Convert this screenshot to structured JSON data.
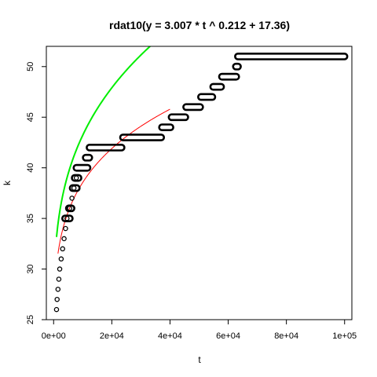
{
  "chart_data": {
    "type": "scatter",
    "title": "rdat10(y = 3.007 * t ^ 0.212 + 17.36)",
    "xlabel": "t",
    "ylabel": "k",
    "xlim": [
      -2500,
      102500
    ],
    "ylim": [
      25,
      52
    ],
    "x_ticks": [
      0,
      20000,
      40000,
      60000,
      80000,
      100000
    ],
    "x_tick_labels": [
      "0e+00",
      "2e+04",
      "4e+04",
      "6e+04",
      "8e+04",
      "1e+05"
    ],
    "y_ticks": [
      25,
      30,
      35,
      40,
      45,
      50
    ],
    "y_tick_labels": [
      "25",
      "30",
      "35",
      "40",
      "45",
      "50"
    ],
    "grid": false,
    "points": [
      {
        "x": 1000,
        "y": 26
      },
      {
        "x": 1200,
        "y": 27
      },
      {
        "x": 1500,
        "y": 28
      },
      {
        "x": 1800,
        "y": 29
      },
      {
        "x": 2100,
        "y": 30
      },
      {
        "x": 2600,
        "y": 31
      },
      {
        "x": 3100,
        "y": 32
      },
      {
        "x": 3600,
        "y": 33
      },
      {
        "x": 4100,
        "y": 34
      },
      {
        "x": 4600,
        "y": 35
      },
      {
        "x": 5500,
        "y": 36
      },
      {
        "x": 6300,
        "y": 37
      },
      {
        "x": 7000,
        "y": 38
      },
      {
        "x": 7800,
        "y": 39
      }
    ],
    "segments": [
      {
        "x_start": 3900,
        "x_end": 5600,
        "y": 35
      },
      {
        "x_start": 5200,
        "x_end": 6200,
        "y": 36
      },
      {
        "x_start": 6500,
        "x_end": 8000,
        "y": 38
      },
      {
        "x_start": 7200,
        "x_end": 8600,
        "y": 39
      },
      {
        "x_start": 7800,
        "x_end": 11700,
        "y": 40
      },
      {
        "x_start": 11000,
        "x_end": 12300,
        "y": 41
      },
      {
        "x_start": 12300,
        "x_end": 23400,
        "y": 42
      },
      {
        "x_start": 23800,
        "x_end": 37000,
        "y": 43
      },
      {
        "x_start": 37200,
        "x_end": 40200,
        "y": 44
      },
      {
        "x_start": 40500,
        "x_end": 45300,
        "y": 45
      },
      {
        "x_start": 45500,
        "x_end": 50400,
        "y": 46
      },
      {
        "x_start": 50600,
        "x_end": 54600,
        "y": 47
      },
      {
        "x_start": 54800,
        "x_end": 57600,
        "y": 48
      },
      {
        "x_start": 57800,
        "x_end": 62800,
        "y": 49
      },
      {
        "x_start": 62600,
        "x_end": 63400,
        "y": 50
      },
      {
        "x_start": 63300,
        "x_end": 100000,
        "y": 51
      }
    ],
    "curves": [
      {
        "color": "#ff0000",
        "a": 3.007,
        "b": 0.212,
        "c": 17.36,
        "t_start": 1500,
        "t_end": 40000
      },
      {
        "color": "#00ee00",
        "a": 1.2,
        "b": 0.305,
        "c": 23.3,
        "t_start": 1000,
        "t_end": 100000
      }
    ]
  }
}
